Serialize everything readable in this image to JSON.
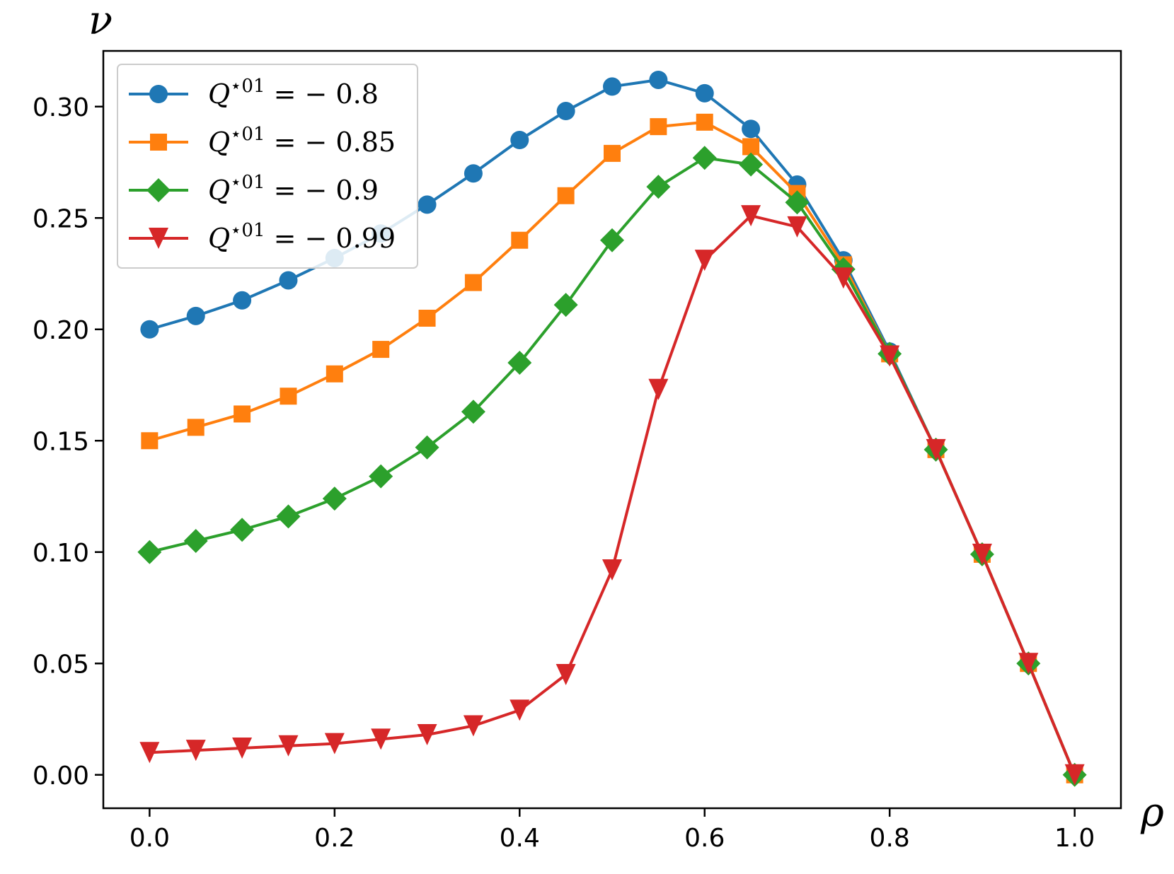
{
  "chart_data": {
    "type": "line",
    "title": "",
    "xlabel": "ρ",
    "ylabel": "ν",
    "xlim": [
      -0.05,
      1.05
    ],
    "ylim": [
      -0.015,
      0.325
    ],
    "xticks": [
      0.0,
      0.2,
      0.4,
      0.6,
      0.8,
      1.0
    ],
    "xtick_labels": [
      "0.0",
      "0.2",
      "0.4",
      "0.6",
      "0.8",
      "1.0"
    ],
    "yticks": [
      0.0,
      0.05,
      0.1,
      0.15,
      0.2,
      0.25,
      0.3
    ],
    "ytick_labels": [
      "0.00",
      "0.05",
      "0.10",
      "0.15",
      "0.20",
      "0.25",
      "0.30"
    ],
    "grid": false,
    "legend_position": "top-left",
    "x": [
      0.0,
      0.05,
      0.1,
      0.15,
      0.2,
      0.25,
      0.3,
      0.35,
      0.4,
      0.45,
      0.5,
      0.55,
      0.6,
      0.65,
      0.7,
      0.75,
      0.8,
      0.85,
      0.9,
      0.95,
      1.0
    ],
    "series": [
      {
        "name": "Q⋆01 = −0.8",
        "label_main": "Q",
        "label_sup": "⋆01",
        "label_rest": " = − 0.8",
        "color": "#1f77b4",
        "marker": "circle",
        "values": [
          0.2,
          0.206,
          0.213,
          0.222,
          0.232,
          0.243,
          0.256,
          0.27,
          0.285,
          0.298,
          0.309,
          0.312,
          0.306,
          0.29,
          0.265,
          0.231,
          0.19,
          0.146,
          0.099,
          0.05,
          0.0
        ]
      },
      {
        "name": "Q⋆01 = −0.85",
        "label_main": "Q",
        "label_sup": "⋆01",
        "label_rest": " = − 0.85",
        "color": "#ff7f0e",
        "marker": "square",
        "values": [
          0.15,
          0.156,
          0.162,
          0.17,
          0.18,
          0.191,
          0.205,
          0.221,
          0.24,
          0.26,
          0.279,
          0.291,
          0.293,
          0.282,
          0.261,
          0.229,
          0.189,
          0.146,
          0.099,
          0.05,
          0.0
        ]
      },
      {
        "name": "Q⋆01 = −0.9",
        "label_main": "Q",
        "label_sup": "⋆01",
        "label_rest": " = − 0.9",
        "color": "#2ca02c",
        "marker": "diamond",
        "values": [
          0.1,
          0.105,
          0.11,
          0.116,
          0.124,
          0.134,
          0.147,
          0.163,
          0.185,
          0.211,
          0.24,
          0.264,
          0.277,
          0.274,
          0.257,
          0.227,
          0.189,
          0.146,
          0.099,
          0.05,
          0.0
        ]
      },
      {
        "name": "Q⋆01 = −0.99",
        "label_main": "Q",
        "label_sup": "⋆01",
        "label_rest": " = − 0.99",
        "color": "#d62728",
        "marker": "triangle-down",
        "values": [
          0.01,
          0.011,
          0.012,
          0.013,
          0.014,
          0.016,
          0.018,
          0.022,
          0.029,
          0.045,
          0.092,
          0.173,
          0.231,
          0.251,
          0.246,
          0.223,
          0.188,
          0.146,
          0.099,
          0.05,
          0.0
        ]
      }
    ]
  }
}
